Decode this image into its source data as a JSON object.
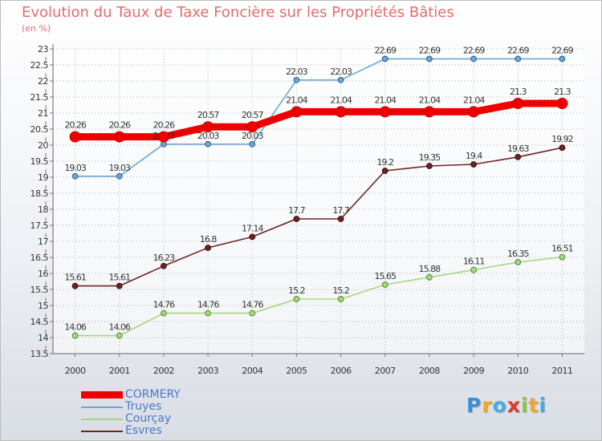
{
  "title": "Evolution du Taux de Taxe Foncière sur les Propriétés Bâties",
  "unit_label": "(en %)",
  "logo": {
    "letters": [
      {
        "char": "P",
        "color": "#3a8ed8"
      },
      {
        "char": "r",
        "color": "#f2a622"
      },
      {
        "char": "o",
        "color": "#4aa8e8"
      },
      {
        "char": "x",
        "color": "#e03a2a"
      },
      {
        "char": "i",
        "color": "#8cc43c"
      },
      {
        "char": "t",
        "color": "#f2a622"
      },
      {
        "char": "i",
        "color": "#4aa8e8"
      }
    ]
  },
  "chart_data": {
    "type": "line",
    "title": "Evolution du Taux de Taxe Foncière sur les Propriétés Bâties",
    "ylabel": "(en %)",
    "xlabel": "",
    "x": [
      "2000",
      "2001",
      "2002",
      "2003",
      "2004",
      "2005",
      "2006",
      "2007",
      "2008",
      "2009",
      "2010",
      "2011"
    ],
    "ylim": [
      13.5,
      23
    ],
    "yticks": [
      "13.5",
      "14",
      "14.5",
      "15",
      "15.5",
      "16",
      "16.5",
      "17",
      "17.5",
      "18",
      "18.5",
      "19",
      "19.5",
      "20",
      "20.5",
      "21",
      "21.5",
      "22",
      "22.5",
      "23"
    ],
    "grid": true,
    "legend_position": "bottom-left",
    "series": [
      {
        "name": "CORMERY",
        "color": "#ee0000",
        "highlight": true,
        "values": [
          20.26,
          20.26,
          20.26,
          20.57,
          20.57,
          21.04,
          21.04,
          21.04,
          21.04,
          21.04,
          21.3,
          21.3
        ],
        "labels": [
          "20.26",
          "20.26",
          "20.26",
          "20.57",
          "20.57",
          "21.04",
          "21.04",
          "21.04",
          "21.04",
          "21.04",
          "21.3",
          "21.3"
        ]
      },
      {
        "name": "Truyes",
        "color": "#6ea6d6",
        "highlight": false,
        "values": [
          19.03,
          19.03,
          20.03,
          20.03,
          20.03,
          22.03,
          22.03,
          22.69,
          22.69,
          22.69,
          22.69,
          22.69
        ],
        "labels": [
          "19.03",
          "19.03",
          "20.03",
          "20.03",
          "20.03",
          "22.03",
          "22.03",
          "22.69",
          "22.69",
          "22.69",
          "22.69",
          "22.69"
        ]
      },
      {
        "name": "Courçay",
        "color": "#a6d880",
        "highlight": false,
        "values": [
          14.06,
          14.06,
          14.76,
          14.76,
          14.76,
          15.2,
          15.2,
          15.65,
          15.88,
          16.11,
          16.35,
          16.51
        ],
        "labels": [
          "14.06",
          "14.06",
          "14.76",
          "14.76",
          "14.76",
          "15.2",
          "15.2",
          "15.65",
          "15.88",
          "16.11",
          "16.35",
          "16.51"
        ]
      },
      {
        "name": "Esvres",
        "color": "#6e2323",
        "highlight": false,
        "values": [
          15.61,
          15.61,
          16.23,
          16.8,
          17.14,
          17.7,
          17.7,
          19.2,
          19.35,
          19.4,
          19.63,
          19.92
        ],
        "labels": [
          "15.61",
          "15.61",
          "16.23",
          "16.8",
          "17.14",
          "17.7",
          "17.7",
          "19.2",
          "19.35",
          "19.4",
          "19.63",
          "19.92"
        ]
      }
    ]
  }
}
